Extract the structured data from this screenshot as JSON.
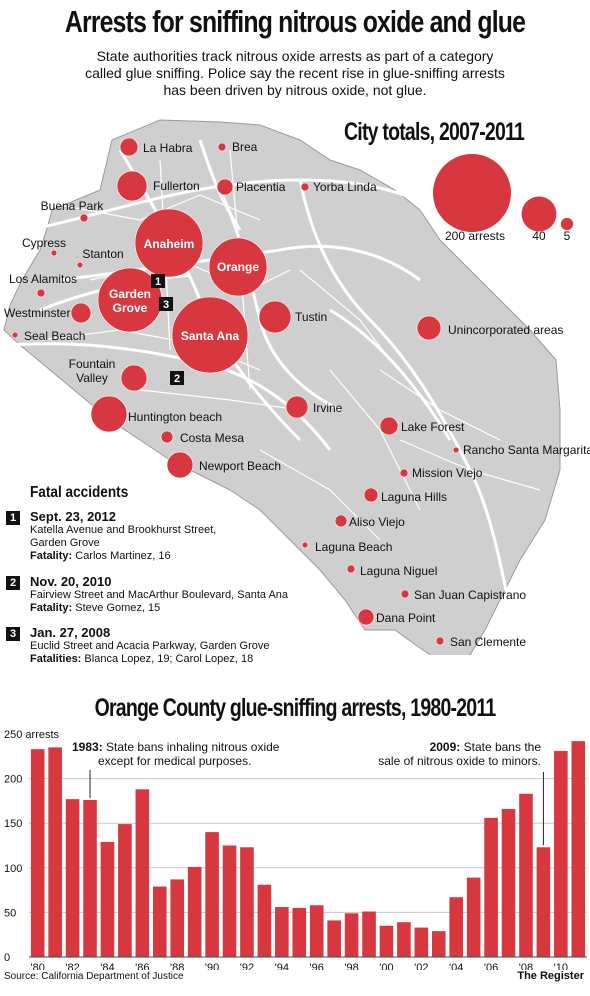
{
  "title": "Arrests for sniffing nitrous oxide and glue",
  "intro": "State authorities track nitrous oxide arrests as part of a category\ncalled glue sniffing.  Police say the recent rise in glue-sniffing arrests\nhas been driven by nitrous oxide, not glue.",
  "colors": {
    "accent": "#d7373f",
    "map_fill": "#cfcfcf",
    "map_stroke": "#ffffff",
    "text": "#111111",
    "grid": "#c8c8c8"
  },
  "map": {
    "title": "City totals, 2007-2011",
    "legend": [
      {
        "label": "200 arrests",
        "value": 200
      },
      {
        "label": "40",
        "value": 40
      },
      {
        "label": "5",
        "value": 5
      }
    ],
    "cities": [
      {
        "name": "La Habra"
      },
      {
        "name": "Brea"
      },
      {
        "name": "Fullerton"
      },
      {
        "name": "Placentia"
      },
      {
        "name": "Yorba Linda"
      },
      {
        "name": "Buena Park"
      },
      {
        "name": "Anaheim"
      },
      {
        "name": "Cypress"
      },
      {
        "name": "Stanton"
      },
      {
        "name": "Orange"
      },
      {
        "name": "Los Alamitos"
      },
      {
        "name": "Garden Grove"
      },
      {
        "name": "Westminster"
      },
      {
        "name": "Seal Beach"
      },
      {
        "name": "Santa Ana"
      },
      {
        "name": "Tustin"
      },
      {
        "name": "Unincorporated areas"
      },
      {
        "name": "Fountain Valley"
      },
      {
        "name": "Huntington beach"
      },
      {
        "name": "Irvine"
      },
      {
        "name": "Costa Mesa"
      },
      {
        "name": "Newport Beach"
      },
      {
        "name": "Lake Forest"
      },
      {
        "name": "Rancho Santa Margarita"
      },
      {
        "name": "Mission Viejo"
      },
      {
        "name": "Laguna Hills"
      },
      {
        "name": "Aliso Viejo"
      },
      {
        "name": "Laguna Beach"
      },
      {
        "name": "Laguna Niguel"
      },
      {
        "name": "San Juan Capistrano"
      },
      {
        "name": "Dana Point"
      },
      {
        "name": "San Clemente"
      }
    ],
    "markers": [
      "1",
      "2",
      "3"
    ]
  },
  "fatal": {
    "title": "Fatal accidents",
    "items": [
      {
        "num": "1",
        "date": "Sept. 23, 2012",
        "location": "Katella Avenue and Brookhurst Street,\nGarden Grove",
        "victims_label": "Fatality:",
        "victims": "Carlos Martinez, 16"
      },
      {
        "num": "2",
        "date": "Nov. 20, 2010",
        "location": "Fairview Street and MacArthur Boulevard, Santa Ana",
        "victims_label": "Fatality:",
        "victims": "Steve Gomez, 15"
      },
      {
        "num": "3",
        "date": "Jan. 27, 2008",
        "location": "Euclid Street and Acacia Parkway, Garden Grove",
        "victims_label": "Fatalities:",
        "victims": "Blanca Lopez, 19; Carol Lopez, 18"
      }
    ]
  },
  "chart_data": {
    "type": "bar",
    "title": "Orange County glue-sniffing arrests, 1980-2011",
    "ylabel": "250 arrests",
    "ylim": [
      0,
      250
    ],
    "yticks": [
      0,
      50,
      100,
      150,
      200
    ],
    "grid": true,
    "categories": [
      "1980",
      "1981",
      "1982",
      "1983",
      "1984",
      "1985",
      "1986",
      "1987",
      "1988",
      "1989",
      "1990",
      "1991",
      "1992",
      "1993",
      "1994",
      "1995",
      "1996",
      "1997",
      "1998",
      "1999",
      "2000",
      "2001",
      "2002",
      "2003",
      "2004",
      "2005",
      "2006",
      "2007",
      "2008",
      "2009",
      "2010",
      "2011"
    ],
    "values": [
      233,
      235,
      177,
      176,
      129,
      149,
      188,
      79,
      87,
      101,
      140,
      125,
      123,
      81,
      56,
      55,
      58,
      41,
      49,
      51,
      35,
      39,
      33,
      29,
      67,
      89,
      156,
      166,
      183,
      123,
      231,
      242
    ],
    "xtick_labels": [
      "'80",
      "'82",
      "'84",
      "'86",
      "'88",
      "'90",
      "'92",
      "'94",
      "'96",
      "'98",
      "'00",
      "'02",
      "'04",
      "'06",
      "'08",
      "'10"
    ],
    "annotations": [
      {
        "bold": "1983:",
        "text": "State bans inhaling nitrous oxide\nexcept for medical purposes."
      },
      {
        "bold": "2009:",
        "text": "State bans the\nsale of nitrous oxide to minors."
      }
    ]
  },
  "source": "Source: California Department of Justice",
  "credit": "The Register"
}
